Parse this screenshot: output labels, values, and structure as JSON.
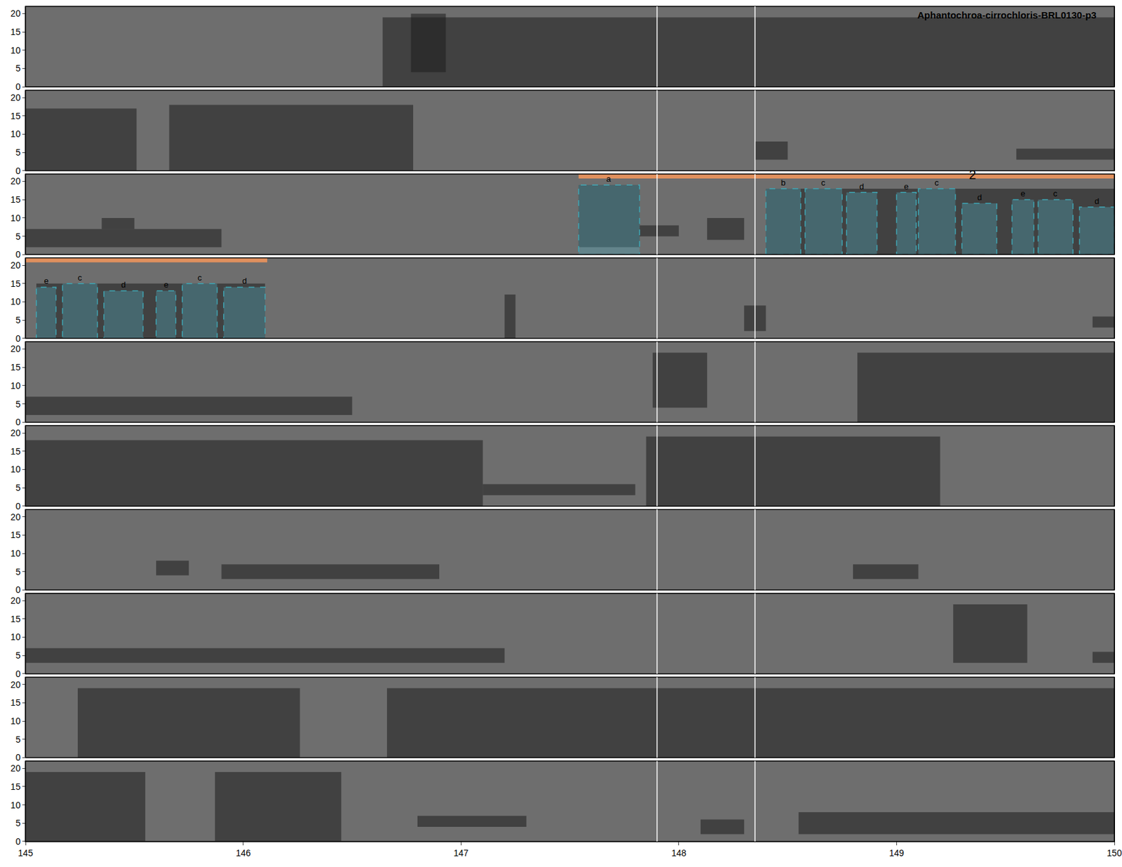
{
  "chart_data": {
    "type": "spectrogram",
    "title": "Aphantochroa-cirrochloris-BRL0130-p3",
    "xlim": [
      145,
      150
    ],
    "xticks": [
      145,
      146,
      147,
      148,
      149,
      150
    ],
    "ylim": [
      0,
      22
    ],
    "yticks": [
      0,
      5,
      10,
      15,
      20
    ],
    "vlines": [
      147.9,
      148.35
    ],
    "rows": [
      {
        "sounds": [
          [
            146.77,
            146.93,
            4,
            20
          ],
          [
            146.64,
            150,
            0,
            19
          ]
        ],
        "boxes": [],
        "bars": [],
        "notes": []
      },
      {
        "sounds": [
          [
            145,
            145.51,
            0,
            17
          ],
          [
            145.66,
            146.78,
            0,
            18
          ],
          [
            148.35,
            148.5,
            3,
            8
          ],
          [
            149.55,
            150,
            3,
            6
          ]
        ],
        "boxes": [],
        "bars": [],
        "notes": []
      },
      {
        "sounds": [
          [
            145,
            145.9,
            2,
            7
          ],
          [
            145.35,
            145.5,
            7,
            10
          ],
          [
            147.54,
            147.82,
            2,
            19
          ],
          [
            147.82,
            148.0,
            5,
            8
          ],
          [
            148.13,
            148.3,
            4,
            10
          ],
          [
            148.4,
            150,
            0,
            18
          ]
        ],
        "boxes": [
          {
            "label": "a",
            "x": [
              147.54,
              147.82
            ],
            "y": [
              0,
              19
            ]
          },
          {
            "label": "b",
            "x": [
              148.4,
              148.56
            ],
            "y": [
              0,
              18
            ]
          },
          {
            "label": "c",
            "x": [
              148.58,
              148.75
            ],
            "y": [
              0,
              18
            ]
          },
          {
            "label": "d",
            "x": [
              148.77,
              148.91
            ],
            "y": [
              0,
              17
            ]
          },
          {
            "label": "e",
            "x": [
              149.0,
              149.09
            ],
            "y": [
              0,
              17
            ]
          },
          {
            "label": "c",
            "x": [
              149.1,
              149.27
            ],
            "y": [
              0,
              18
            ]
          },
          {
            "label": "d",
            "x": [
              149.3,
              149.46
            ],
            "y": [
              0,
              14
            ]
          },
          {
            "label": "e",
            "x": [
              149.53,
              149.63
            ],
            "y": [
              0,
              15
            ]
          },
          {
            "label": "c",
            "x": [
              149.65,
              149.81
            ],
            "y": [
              0,
              15
            ]
          },
          {
            "label": "d",
            "x": [
              149.84,
              150
            ],
            "y": [
              0,
              13
            ]
          }
        ],
        "bars": [
          {
            "x": [
              147.54,
              150
            ],
            "y": 21.4
          }
        ],
        "notes": [
          {
            "text": "2",
            "x": 149.35,
            "y": 19.5
          }
        ]
      },
      {
        "sounds": [
          [
            145.05,
            146.1,
            0,
            15
          ],
          [
            147.2,
            147.25,
            0,
            12
          ],
          [
            148.3,
            148.4,
            2,
            9
          ],
          [
            149.9,
            150,
            3,
            6
          ]
        ],
        "boxes": [
          {
            "label": "e",
            "x": [
              145.05,
              145.14
            ],
            "y": [
              0,
              14
            ]
          },
          {
            "label": "c",
            "x": [
              145.17,
              145.33
            ],
            "y": [
              0,
              15
            ]
          },
          {
            "label": "d",
            "x": [
              145.36,
              145.54
            ],
            "y": [
              0,
              13
            ]
          },
          {
            "label": "e",
            "x": [
              145.6,
              145.69
            ],
            "y": [
              0,
              13
            ]
          },
          {
            "label": "c",
            "x": [
              145.72,
              145.88
            ],
            "y": [
              0,
              15
            ]
          },
          {
            "label": "d",
            "x": [
              145.91,
              146.1
            ],
            "y": [
              0,
              14
            ]
          }
        ],
        "bars": [
          {
            "x": [
              145,
              146.11
            ],
            "y": 21.4
          }
        ],
        "notes": []
      },
      {
        "sounds": [
          [
            145,
            146.5,
            2,
            7
          ],
          [
            147.88,
            148.13,
            4,
            19
          ],
          [
            148.82,
            150,
            0,
            19
          ]
        ],
        "boxes": [],
        "bars": [],
        "notes": []
      },
      {
        "sounds": [
          [
            145,
            147.1,
            0,
            18
          ],
          [
            147.1,
            147.8,
            3,
            6
          ],
          [
            147.85,
            149.2,
            0,
            19
          ]
        ],
        "boxes": [],
        "bars": [],
        "notes": []
      },
      {
        "sounds": [
          [
            145.6,
            145.75,
            4,
            8
          ],
          [
            145.9,
            146.9,
            3,
            7
          ],
          [
            148.8,
            149.1,
            3,
            7
          ]
        ],
        "boxes": [],
        "bars": [],
        "notes": []
      },
      {
        "sounds": [
          [
            145,
            147.2,
            3,
            7
          ],
          [
            149.26,
            149.6,
            3,
            19
          ],
          [
            149.9,
            150,
            3,
            6
          ]
        ],
        "boxes": [],
        "bars": [],
        "notes": []
      },
      {
        "sounds": [
          [
            145.24,
            146.26,
            0,
            19
          ],
          [
            146.66,
            150,
            0,
            19
          ]
        ],
        "boxes": [],
        "bars": [],
        "notes": []
      },
      {
        "sounds": [
          [
            145,
            145.55,
            0,
            19
          ],
          [
            145.87,
            146.45,
            0,
            19
          ],
          [
            146.8,
            147.3,
            4,
            7
          ],
          [
            148.1,
            148.3,
            2,
            6
          ],
          [
            148.55,
            150,
            2,
            8
          ]
        ],
        "boxes": [],
        "bars": [],
        "notes": []
      }
    ]
  }
}
